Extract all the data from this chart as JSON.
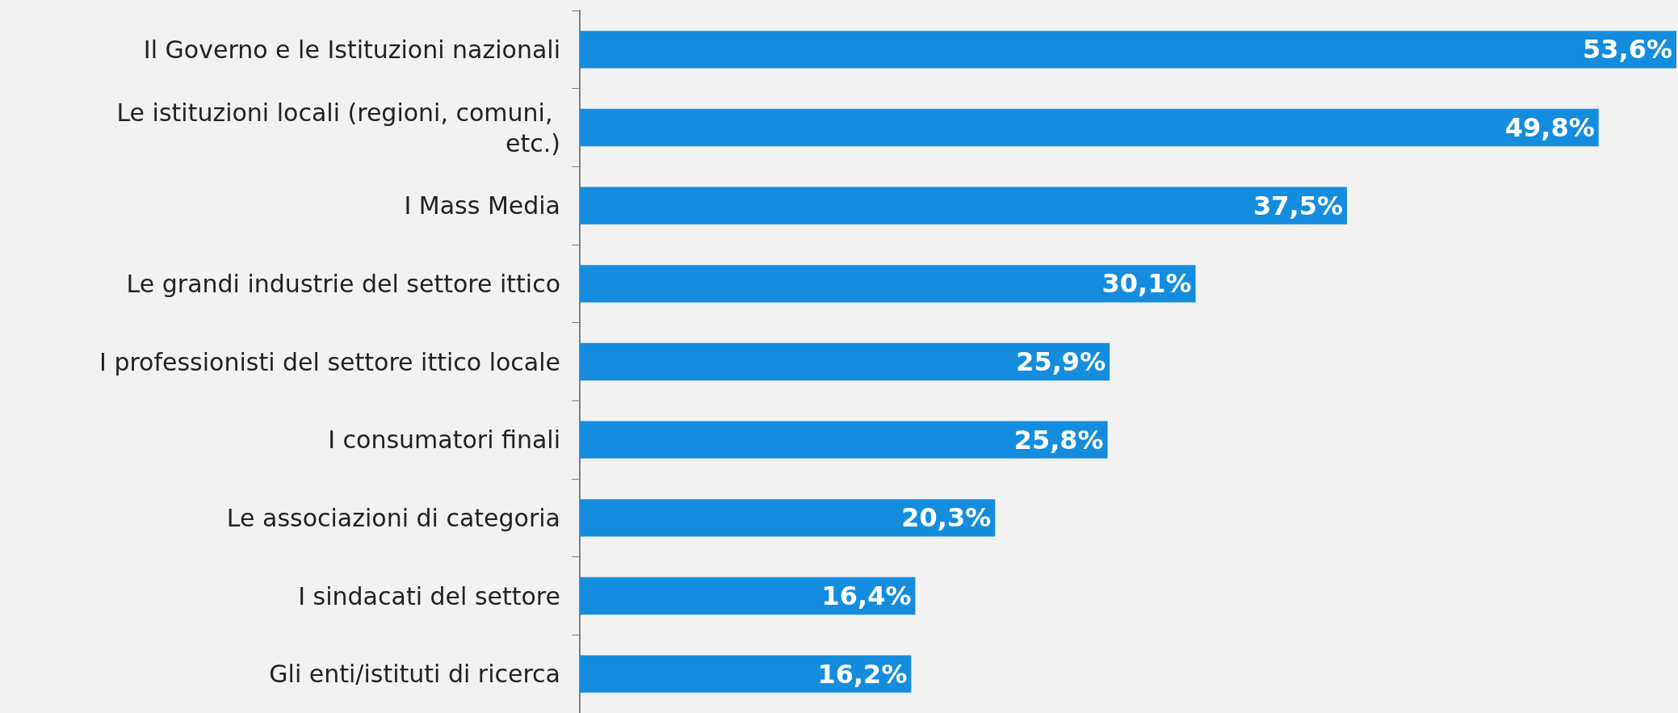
{
  "chart_data": {
    "type": "bar",
    "orientation": "horizontal",
    "categories": [
      "Il Governo e le Istituzioni nazionali",
      "Le istituzioni locali (regioni, comuni, etc.)",
      "I Mass Media",
      "Le grandi industrie del settore ittico",
      "I professionisti del settore ittico locale",
      "I consumatori finali",
      "Le associazioni di categoria",
      "I sindacati del settore",
      "Gli enti/istituti di ricerca"
    ],
    "values": [
      53.6,
      49.8,
      37.5,
      30.1,
      25.9,
      25.8,
      20.3,
      16.4,
      16.2
    ],
    "value_labels": [
      "53,6%",
      "49,8%",
      "37,5%",
      "30,1%",
      "25,9%",
      "25,8%",
      "20,3%",
      "16,4%",
      "16,2%"
    ],
    "color": "#148ddf"
  }
}
